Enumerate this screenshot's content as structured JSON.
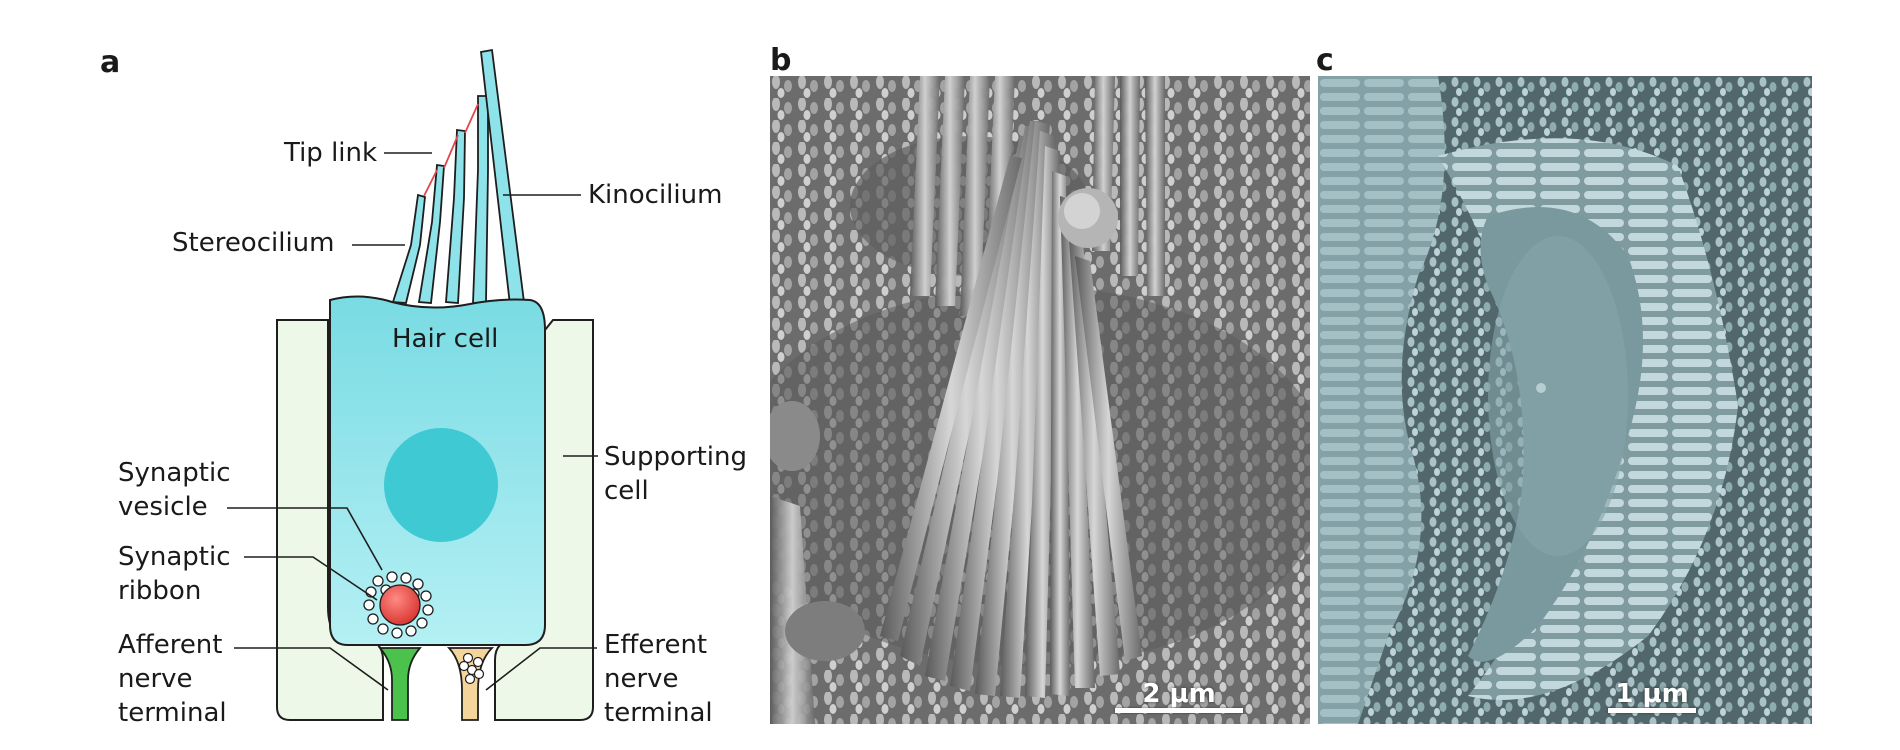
{
  "panels": {
    "a": {
      "letter": "a",
      "labels": {
        "tip_link": "Tip link",
        "kinocilium": "Kinocilium",
        "stereocilium": "Stereocilium",
        "hair_cell": "Hair cell",
        "synaptic_vesicle": [
          "Synaptic",
          "vesicle"
        ],
        "synaptic_ribbon": [
          "Synaptic",
          "ribbon"
        ],
        "supporting_cell": [
          "Supporting",
          "cell"
        ],
        "afferent_nerve_terminal": [
          "Afferent",
          "nerve",
          "terminal"
        ],
        "efferent_nerve_terminal": [
          "Efferent",
          "nerve",
          "terminal"
        ]
      },
      "colors": {
        "hair_cell": "#8ee3ea",
        "nucleus": "#3fc9d2",
        "supporting_cell": "#eef8e8",
        "ribbon": "#e8453f",
        "afferent": "#4bc24b",
        "efferent": "#f3d49a",
        "tip_link": "#e2474a"
      }
    },
    "b": {
      "letter": "b",
      "scale_label": "2 μm",
      "tint": "#9a9a9a"
    },
    "c": {
      "letter": "c",
      "scale_label": "1 μm",
      "tint": "#9fbcc2"
    }
  }
}
